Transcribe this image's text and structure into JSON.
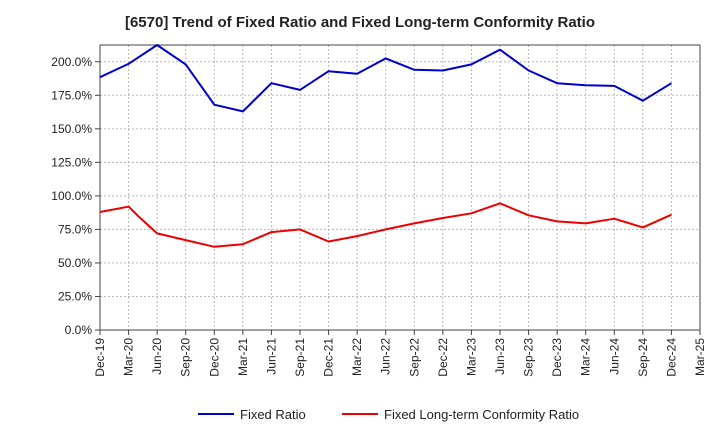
{
  "chart_data": {
    "type": "line",
    "title": "[6570]  Trend of Fixed Ratio and Fixed Long-term Conformity Ratio",
    "xlabel": "",
    "ylabel": "",
    "x": [
      "Dec-19",
      "Mar-20",
      "Jun-20",
      "Sep-20",
      "Dec-20",
      "Mar-21",
      "Jun-21",
      "Sep-21",
      "Dec-21",
      "Mar-22",
      "Jun-22",
      "Sep-22",
      "Dec-22",
      "Mar-23",
      "Jun-23",
      "Sep-23",
      "Dec-23",
      "Mar-24",
      "Jun-24",
      "Sep-24",
      "Dec-24",
      "Mar-25"
    ],
    "ylim": [
      0,
      212.5
    ],
    "yticks": [
      0,
      25,
      50,
      75,
      100,
      125,
      150,
      175,
      200
    ],
    "ytick_labels": [
      "0.0%",
      "25.0%",
      "50.0%",
      "75.0%",
      "100.0%",
      "125.0%",
      "150.0%",
      "175.0%",
      "200.0%"
    ],
    "grid": true,
    "legend_position": "bottom",
    "series": [
      {
        "name": "Fixed Ratio",
        "color": "#0000cc",
        "points": [
          [
            "Dec-19",
            188.5
          ],
          [
            "Mar-20",
            198.5
          ],
          [
            "Jun-20",
            212.5
          ],
          [
            "Sep-20",
            198.0
          ],
          [
            "Dec-20",
            168.0
          ],
          [
            "Mar-21",
            163.0
          ],
          [
            "Jun-21",
            184.0
          ],
          [
            "Sep-21",
            179.0
          ],
          [
            "Dec-21",
            193.0
          ],
          [
            "Mar-22",
            191.0
          ],
          [
            "Jun-22",
            202.5
          ],
          [
            "Sep-22",
            194.0
          ],
          [
            "Dec-22",
            193.5
          ],
          [
            "Mar-23",
            198.0
          ],
          [
            "Jun-23",
            209.0
          ],
          [
            "Sep-23",
            193.5
          ],
          [
            "Dec-23",
            184.0
          ],
          [
            "Mar-24",
            182.5
          ],
          [
            "Jun-24",
            182.0
          ],
          [
            "Sep-24",
            171.0
          ],
          [
            "Dec-24",
            184.0
          ]
        ]
      },
      {
        "name": "Fixed Long-term Conformity Ratio",
        "color": "#ee0000",
        "points": [
          [
            "Dec-19",
            88.0
          ],
          [
            "Mar-20",
            92.0
          ],
          [
            "Apr-20",
            85.0
          ],
          [
            "Jun-20",
            72.0
          ],
          [
            "Sep-20",
            67.0
          ],
          [
            "Dec-20",
            62.0
          ],
          [
            "Mar-21",
            64.0
          ],
          [
            "Jun-21",
            73.0
          ],
          [
            "Sep-21",
            75.0
          ],
          [
            "Dec-21",
            66.0
          ],
          [
            "Mar-22",
            70.0
          ],
          [
            "Jun-22",
            75.0
          ],
          [
            "Sep-22",
            79.5
          ],
          [
            "Dec-22",
            83.5
          ],
          [
            "Mar-23",
            87.0
          ],
          [
            "Jun-23",
            94.5
          ],
          [
            "Sep-23",
            85.5
          ],
          [
            "Dec-23",
            81.0
          ],
          [
            "Mar-24",
            79.5
          ],
          [
            "Jun-24",
            83.0
          ],
          [
            "Sep-24",
            76.5
          ],
          [
            "Dec-24",
            86.0
          ]
        ]
      }
    ]
  }
}
